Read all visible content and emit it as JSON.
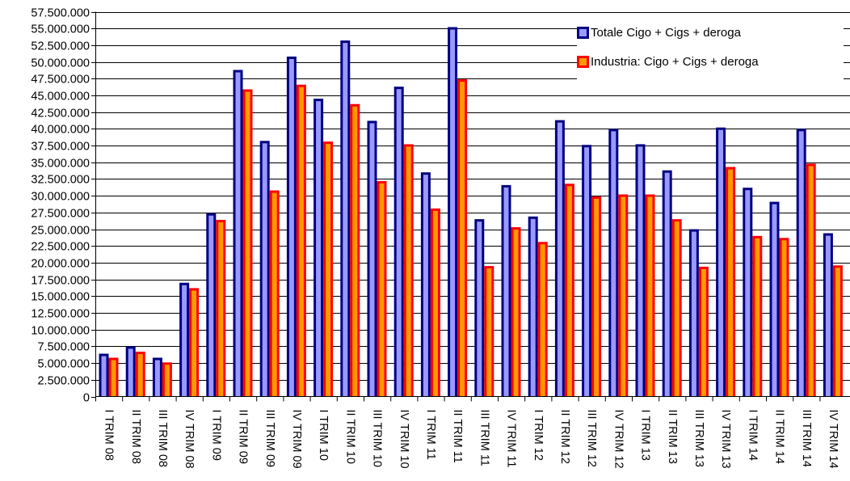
{
  "chart_data": {
    "type": "bar",
    "title": "",
    "xlabel": "",
    "ylabel": "",
    "ylim": [
      0,
      57500000
    ],
    "grid": true,
    "legend_position": "top-right",
    "y_ticks": [
      "0",
      "2.500.000",
      "5.000.000",
      "7.500.000",
      "10.000.000",
      "12.500.000",
      "15.000.000",
      "17.500.000",
      "20.000.000",
      "22.500.000",
      "25.000.000",
      "27.500.000",
      "30.000.000",
      "32.500.000",
      "35.000.000",
      "37.500.000",
      "40.000.000",
      "42.500.000",
      "45.000.000",
      "47.500.000",
      "50.000.000",
      "52.500.000",
      "55.000.000",
      "57.500.000"
    ],
    "categories": [
      "I TRIM 08",
      "II TRIM 08",
      "III TRIM 08",
      "IV TRIM 08",
      "I TRIM 09",
      "II TRIM 09",
      "III TRIM 09",
      "IV TRIM 09",
      "I TRIM 10",
      "II TRIM 10",
      "III TRIM 10",
      "IV TRIM 10",
      "I TRIM 11",
      "II TRIM 11",
      "III TRIM 11",
      "IV TRIM 11",
      "I TRIM 12",
      "II TRIM 12",
      "III TRIM 12",
      "IV TRIM 12",
      "I TRIM 13",
      "II TRIM 13",
      "III TRIM 13",
      "IV TRIM 13",
      "I TRIM 14",
      "II TRIM 14",
      "III TRIM 14",
      "IV TRIM 14"
    ],
    "series": [
      {
        "name": "Totale Cigo + Cigs + deroga",
        "color": "#000080",
        "fill": "#9999FF",
        "values": [
          6400000,
          7500000,
          5800000,
          17000000,
          27400000,
          48800000,
          38200000,
          50800000,
          44500000,
          53200000,
          41200000,
          46300000,
          33500000,
          55200000,
          26500000,
          31600000,
          26900000,
          41300000,
          37600000,
          40000000,
          37700000,
          33800000,
          25000000,
          40200000,
          31200000,
          29100000,
          40000000,
          24400000
        ]
      },
      {
        "name": "Industria: Cigo + Cigs + deroga",
        "color": "#FF0000",
        "fill": "#FF9900",
        "values": [
          5800000,
          6700000,
          5100000,
          16200000,
          26400000,
          45900000,
          30800000,
          46600000,
          38100000,
          43700000,
          32200000,
          37700000,
          28100000,
          47400000,
          19500000,
          25300000,
          23100000,
          31800000,
          29900000,
          30200000,
          30200000,
          26500000,
          19400000,
          34300000,
          24000000,
          23700000,
          34800000,
          19600000
        ]
      }
    ]
  }
}
